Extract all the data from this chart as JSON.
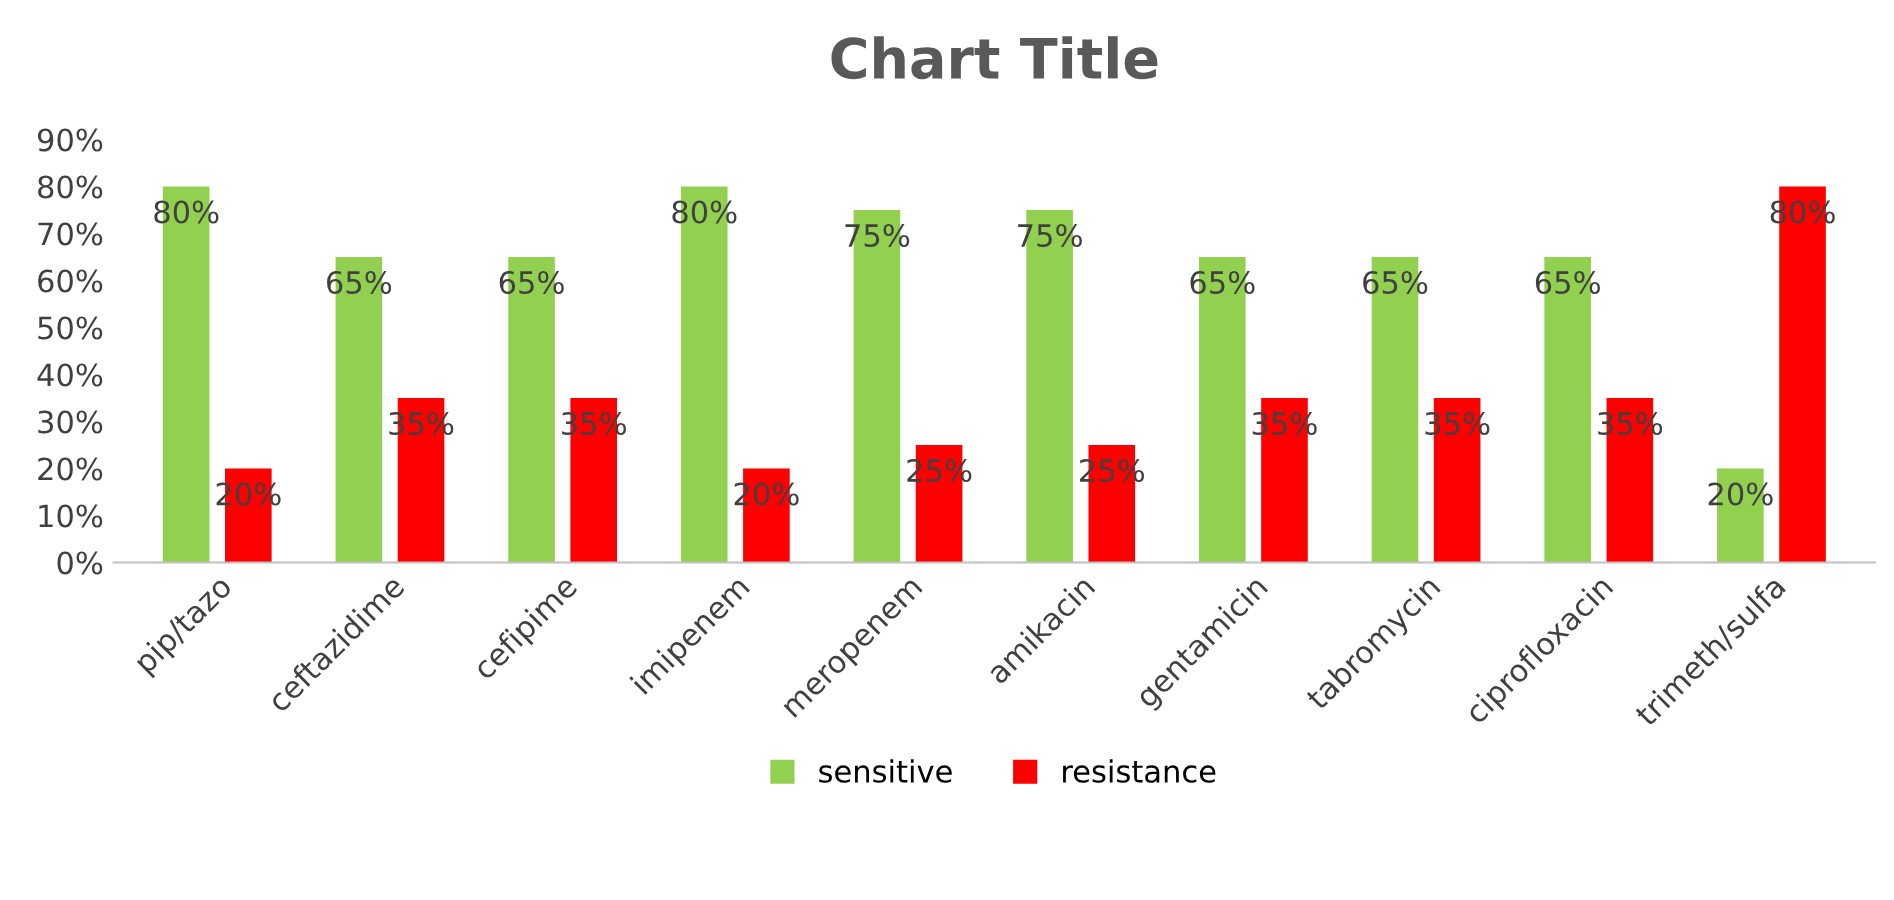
{
  "chart_data": {
    "type": "bar",
    "title": "Chart Title",
    "categories": [
      "pip/tazo",
      "ceftazidime",
      "cefipime",
      "imipenem",
      "meropenem",
      "amikacin",
      "gentamicin",
      "tabromycin",
      "ciprofloxacin",
      "trimeth/sulfa"
    ],
    "series": [
      {
        "name": "sensitive",
        "color": "#92d050",
        "values": [
          80,
          65,
          65,
          80,
          75,
          75,
          65,
          65,
          65,
          20
        ],
        "value_labels": [
          "80%",
          "65%",
          "65%",
          "80%",
          "75%",
          "75%",
          "65%",
          "65%",
          "65%",
          "20%"
        ]
      },
      {
        "name": "resistance",
        "color": "#ff0000",
        "values": [
          20,
          35,
          35,
          20,
          25,
          25,
          35,
          35,
          35,
          80
        ],
        "value_labels": [
          "20%",
          "35%",
          "35%",
          "20%",
          "25%",
          "25%",
          "35%",
          "35%",
          "35%",
          "80%"
        ]
      }
    ],
    "ylim": [
      0,
      90
    ],
    "yticks": [
      {
        "value": 0,
        "label": "0%"
      },
      {
        "value": 10,
        "label": "10%"
      },
      {
        "value": 20,
        "label": "20%"
      },
      {
        "value": 30,
        "label": "30%"
      },
      {
        "value": 40,
        "label": "40%"
      },
      {
        "value": 50,
        "label": "50%"
      },
      {
        "value": 60,
        "label": "60%"
      },
      {
        "value": 70,
        "label": "70%"
      },
      {
        "value": 80,
        "label": "80%"
      },
      {
        "value": 90,
        "label": "90%"
      }
    ],
    "grid": false,
    "legend": "bottom"
  }
}
